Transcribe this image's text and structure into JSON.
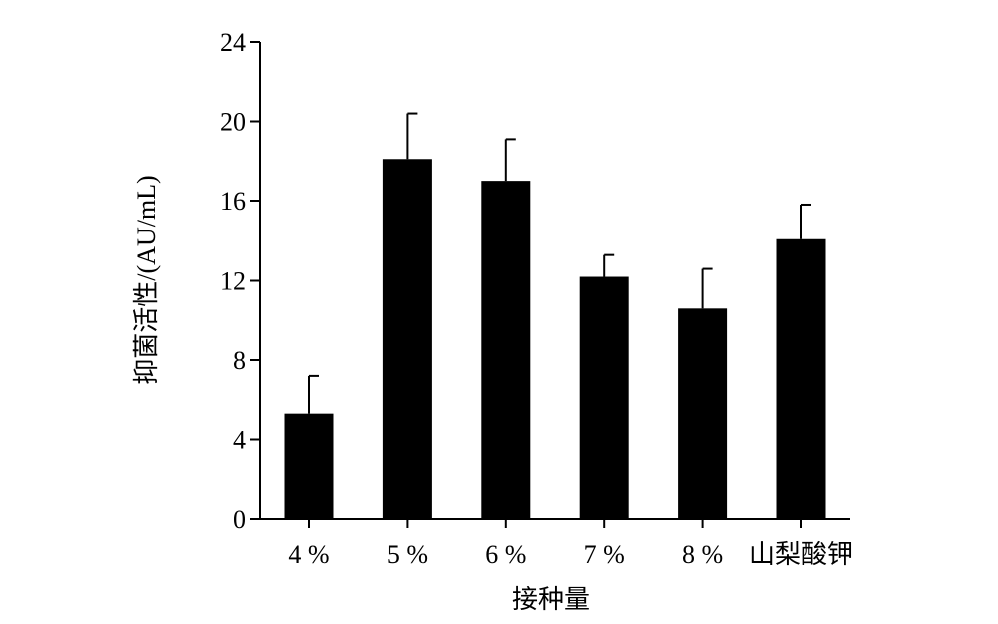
{
  "chart_data": {
    "type": "bar",
    "categories": [
      "4 %",
      "5 %",
      "6 %",
      "7 %",
      "8 %",
      "山梨酸钾"
    ],
    "values": [
      5.3,
      18.1,
      17.0,
      12.2,
      10.6,
      14.1
    ],
    "error_upper": [
      7.2,
      20.4,
      19.1,
      13.3,
      12.6,
      15.8
    ],
    "xlabel": "接种量",
    "ylabel": "抑菌活性/(AU/mL)",
    "ylim": [
      0,
      24
    ],
    "yticks": [
      0,
      4,
      8,
      12,
      16,
      20,
      24
    ],
    "grid": false,
    "bar_color": "#000000"
  }
}
